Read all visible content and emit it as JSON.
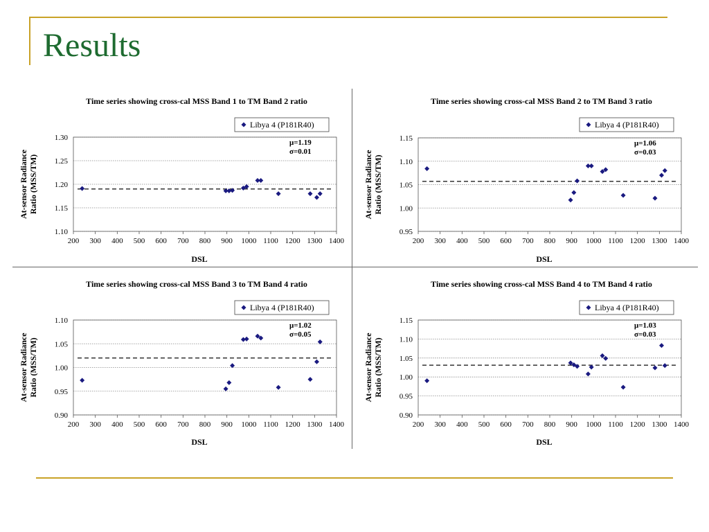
{
  "slide": {
    "title": "Results"
  },
  "chart_data": [
    {
      "type": "scatter",
      "title": "Time series showing cross-cal MSS Band 1 to TM Band 2 ratio",
      "xlabel": "DSL",
      "ylabel": [
        "At-sensor Radiance",
        "Ratio (MSS/TM)"
      ],
      "xlim": [
        200,
        1400
      ],
      "ylim": [
        1.1,
        1.3
      ],
      "xticks": [
        200,
        300,
        400,
        500,
        600,
        700,
        800,
        900,
        1000,
        1100,
        1200,
        1300,
        1400
      ],
      "yticks": [
        1.1,
        1.15,
        1.2,
        1.25,
        1.3
      ],
      "ytick_decimals": 2,
      "grid": "horizontal-dotted",
      "legend_placement": "top-right",
      "mean_line": 1.19,
      "annotations": [
        "μ=1.19",
        "σ=0.01"
      ],
      "series": [
        {
          "name": "Libya 4 (P181R40)",
          "color": "#1a1a80",
          "marker": "diamond",
          "x": [
            240,
            895,
            910,
            925,
            975,
            990,
            1040,
            1055,
            1135,
            1280,
            1310,
            1325
          ],
          "y": [
            1.191,
            1.186,
            1.186,
            1.187,
            1.192,
            1.195,
            1.208,
            1.208,
            1.18,
            1.18,
            1.172,
            1.18
          ]
        }
      ]
    },
    {
      "type": "scatter",
      "title": "Time series showing cross-cal MSS Band 2 to TM Band 3 ratio",
      "xlabel": "DSL",
      "ylabel": [
        "At-sensor Radiance",
        "Ratio (MSS/TM)"
      ],
      "xlim": [
        200,
        1400
      ],
      "ylim": [
        0.95,
        1.15
      ],
      "xticks": [
        200,
        300,
        400,
        500,
        600,
        700,
        800,
        900,
        1000,
        1100,
        1200,
        1300,
        1400
      ],
      "yticks": [
        0.95,
        1.0,
        1.05,
        1.1,
        1.15
      ],
      "ytick_decimals": 2,
      "grid": "horizontal-dotted",
      "legend_placement": "top-right",
      "mean_line": 1.057,
      "annotations": [
        "μ=1.06",
        "σ=0.03"
      ],
      "series": [
        {
          "name": "Libya 4 (P181R40)",
          "color": "#1a1a80",
          "marker": "diamond",
          "x": [
            240,
            895,
            910,
            925,
            975,
            990,
            1040,
            1055,
            1135,
            1280,
            1310,
            1325
          ],
          "y": [
            1.084,
            1.017,
            1.033,
            1.058,
            1.09,
            1.09,
            1.078,
            1.082,
            1.027,
            1.021,
            1.07,
            1.08
          ]
        }
      ]
    },
    {
      "type": "scatter",
      "title": "Time series showing cross-cal MSS Band 3 to TM Band 4 ratio",
      "xlabel": "DSL",
      "ylabel": [
        "At-sensor Radiance",
        "Ratio (MSS/TM)"
      ],
      "xlim": [
        200,
        1400
      ],
      "ylim": [
        0.9,
        1.1
      ],
      "xticks": [
        200,
        300,
        400,
        500,
        600,
        700,
        800,
        900,
        1000,
        1100,
        1200,
        1300,
        1400
      ],
      "yticks": [
        0.9,
        0.95,
        1.0,
        1.05,
        1.1
      ],
      "ytick_decimals": 2,
      "grid": "horizontal-dotted",
      "legend_placement": "top-right",
      "mean_line": 1.02,
      "annotations": [
        "μ=1.02",
        "σ=0.05"
      ],
      "series": [
        {
          "name": "Libya 4 (P181R40)",
          "color": "#1a1a80",
          "marker": "diamond",
          "x": [
            240,
            895,
            910,
            925,
            975,
            990,
            1040,
            1055,
            1135,
            1280,
            1310,
            1325
          ],
          "y": [
            0.973,
            0.955,
            0.968,
            1.004,
            1.059,
            1.06,
            1.066,
            1.062,
            0.958,
            0.975,
            1.012,
            1.054
          ]
        }
      ]
    },
    {
      "type": "scatter",
      "title": "Time series showing cross-cal MSS Band 4 to TM Band 4 ratio",
      "xlabel": "DSL",
      "ylabel": [
        "At-sensor Radiance",
        "Ratio (MSS/TM)"
      ],
      "xlim": [
        200,
        1400
      ],
      "ylim": [
        0.9,
        1.15
      ],
      "xticks": [
        200,
        300,
        400,
        500,
        600,
        700,
        800,
        900,
        1000,
        1100,
        1200,
        1300,
        1400
      ],
      "yticks": [
        0.9,
        0.95,
        1.0,
        1.05,
        1.1,
        1.15
      ],
      "ytick_decimals": 2,
      "grid": "horizontal-dotted",
      "legend_placement": "top-right",
      "mean_line": 1.031,
      "annotations": [
        "μ=1.03",
        "σ=0.03"
      ],
      "series": [
        {
          "name": "Libya 4 (P181R40)",
          "color": "#1a1a80",
          "marker": "diamond",
          "x": [
            240,
            895,
            910,
            925,
            975,
            990,
            1040,
            1055,
            1135,
            1280,
            1310,
            1325
          ],
          "y": [
            0.99,
            1.037,
            1.032,
            1.028,
            1.008,
            1.026,
            1.056,
            1.049,
            0.973,
            1.024,
            1.083,
            1.03
          ]
        }
      ]
    }
  ]
}
